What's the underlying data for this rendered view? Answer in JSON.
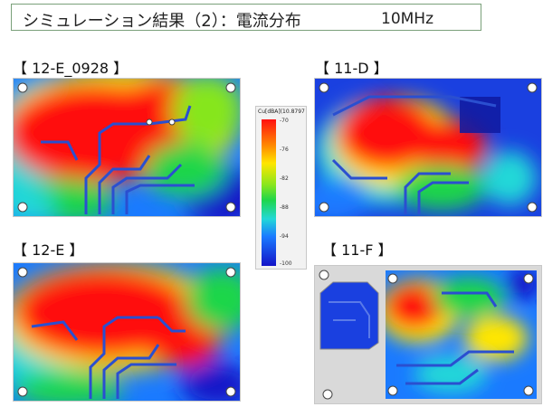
{
  "title": {
    "text": "シミュレーション結果（2）：電流分布",
    "freq": "10MHz"
  },
  "panels": [
    {
      "label": "【 12-E_0928 】"
    },
    {
      "label": "【 11-D 】"
    },
    {
      "label": "【 12-E 】"
    },
    {
      "label": "【 11-F 】"
    }
  ],
  "colorbar": {
    "title": "Cu[dBA](10.8797",
    "ticks": [
      "-70",
      "-76",
      "-82",
      "-88",
      "-94",
      "-100"
    ],
    "colors": {
      "max": "#ff1010",
      "mid": "#1fd64a",
      "min": "#1414c8"
    }
  }
}
